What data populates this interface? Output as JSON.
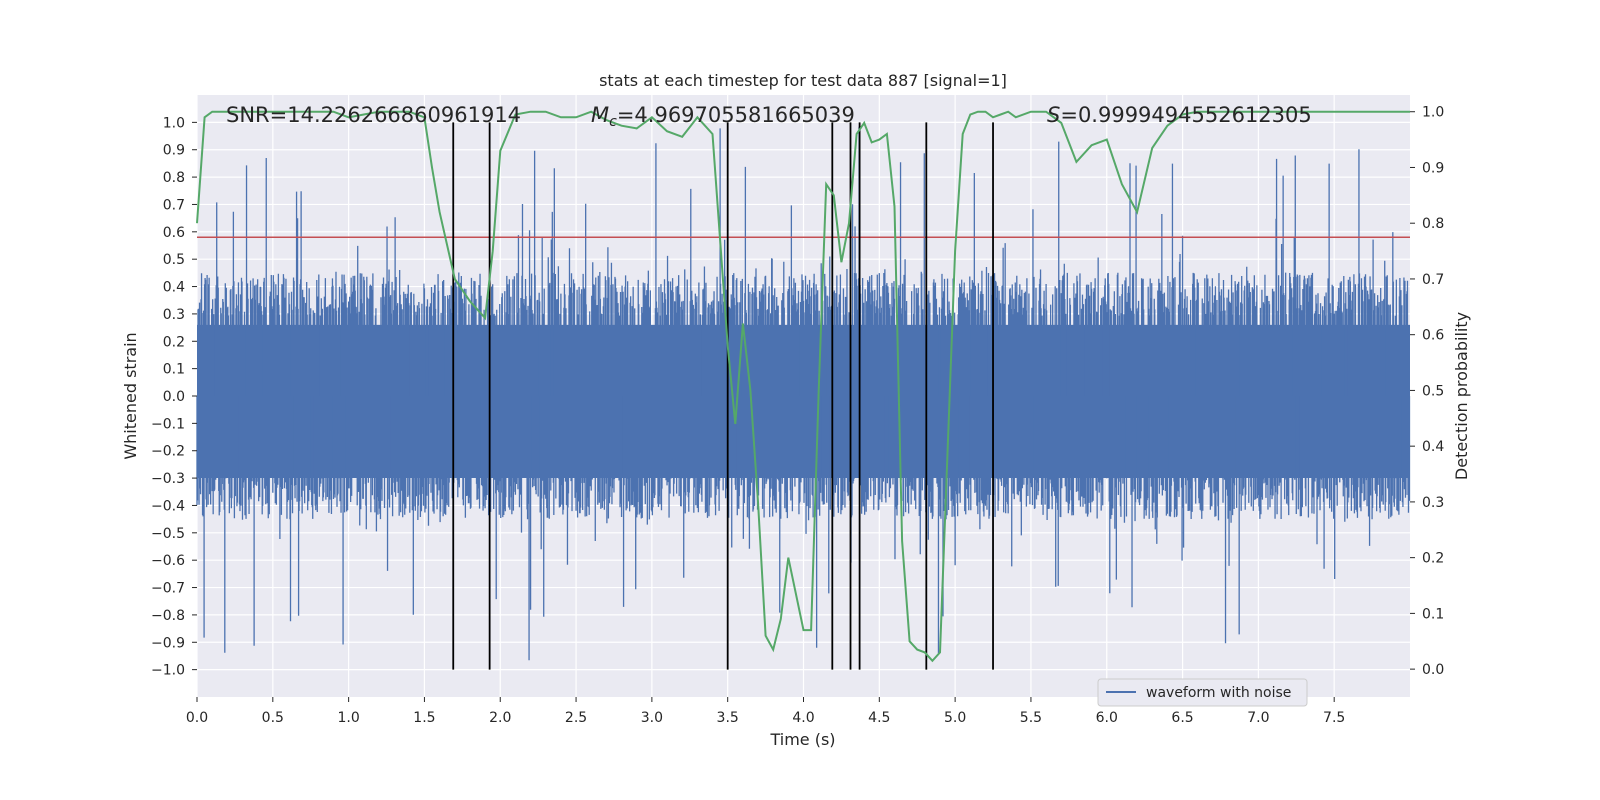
{
  "chart_data": {
    "type": "line",
    "title": "stats at each timestep for test data 887 [signal=1]",
    "xlabel": "Time (s)",
    "ylabel_left": "Whitened strain",
    "ylabel_right": "Detection probability",
    "xlim": [
      0.0,
      8.0
    ],
    "ylim_left": [
      -1.1,
      1.1
    ],
    "ylim_right": [
      -0.05,
      1.03
    ],
    "x_ticks": [
      "0.0",
      "0.5",
      "1.0",
      "1.5",
      "2.0",
      "2.5",
      "3.0",
      "3.5",
      "4.0",
      "4.5",
      "5.0",
      "5.5",
      "6.0",
      "6.5",
      "7.0",
      "7.5"
    ],
    "y_ticks_left": [
      "−1.0",
      "−0.9",
      "−0.8",
      "−0.7",
      "−0.6",
      "−0.5",
      "−0.4",
      "−0.3",
      "−0.2",
      "−0.1",
      "0.0",
      "0.1",
      "0.2",
      "0.3",
      "0.4",
      "0.5",
      "0.6",
      "0.7",
      "0.8",
      "0.9",
      "1.0"
    ],
    "y_ticks_right": [
      "0.0",
      "0.1",
      "0.2",
      "0.3",
      "0.4",
      "0.5",
      "0.6",
      "0.7",
      "0.8",
      "0.9",
      "1.0"
    ],
    "grid": true,
    "legend_placement": "lower-right",
    "annotations": {
      "snr": "SNR=14.226266860961914",
      "mc_symbol": "M",
      "mc_sub": "c",
      "mc_value": "=4.969705581665039",
      "s_symbol": "S",
      "s_value": "=0.9999494552612305"
    },
    "series": [
      {
        "name": "waveform with noise",
        "axis": "left",
        "color": "#4c72b0",
        "kind": "noise",
        "envelope_typical": 0.45,
        "envelope_max": 1.0
      },
      {
        "axis": "right",
        "color": "#55a868",
        "x": [
          0.0,
          0.05,
          0.1,
          0.2,
          0.3,
          0.4,
          0.5,
          0.6,
          0.7,
          0.8,
          0.9,
          1.0,
          1.1,
          1.2,
          1.3,
          1.4,
          1.5,
          1.55,
          1.6,
          1.7,
          1.8,
          1.9,
          1.95,
          2.0,
          2.1,
          2.2,
          2.3,
          2.4,
          2.5,
          2.6,
          2.7,
          2.8,
          2.9,
          3.0,
          3.1,
          3.2,
          3.3,
          3.4,
          3.5,
          3.55,
          3.6,
          3.65,
          3.7,
          3.75,
          3.8,
          3.85,
          3.9,
          4.0,
          4.05,
          4.1,
          4.15,
          4.2,
          4.25,
          4.3,
          4.35,
          4.4,
          4.45,
          4.5,
          4.55,
          4.6,
          4.65,
          4.7,
          4.75,
          4.8,
          4.85,
          4.9,
          5.0,
          5.05,
          5.1,
          5.15,
          5.2,
          5.25,
          5.3,
          5.35,
          5.4,
          5.5,
          5.6,
          5.7,
          5.8,
          5.9,
          6.0,
          6.1,
          6.2,
          6.3,
          6.4,
          6.5,
          6.6,
          6.7,
          6.8,
          6.9,
          7.0,
          7.5,
          8.0
        ],
        "y": [
          0.8,
          0.99,
          1.0,
          1.0,
          1.0,
          1.0,
          1.0,
          1.0,
          1.0,
          1.0,
          1.0,
          0.99,
          0.995,
          1.0,
          1.0,
          1.0,
          0.99,
          0.9,
          0.82,
          0.7,
          0.66,
          0.63,
          0.75,
          0.93,
          0.995,
          1.0,
          1.0,
          0.99,
          0.99,
          1.0,
          0.985,
          0.975,
          0.97,
          0.99,
          0.965,
          0.955,
          0.99,
          0.96,
          0.58,
          0.44,
          0.62,
          0.5,
          0.3,
          0.06,
          0.035,
          0.09,
          0.2,
          0.07,
          0.07,
          0.5,
          0.87,
          0.85,
          0.73,
          0.8,
          0.96,
          0.98,
          0.945,
          0.95,
          0.96,
          0.83,
          0.23,
          0.05,
          0.035,
          0.03,
          0.015,
          0.03,
          0.75,
          0.96,
          0.995,
          1.0,
          1.0,
          0.99,
          0.995,
          1.0,
          0.99,
          1.0,
          1.0,
          0.98,
          0.91,
          0.94,
          0.95,
          0.87,
          0.82,
          0.935,
          0.975,
          0.995,
          1.0,
          1.0,
          1.0,
          1.0,
          1.0,
          1.0,
          1.0
        ]
      }
    ],
    "threshold_line": {
      "axis": "left",
      "value": 0.58,
      "color": "#c44e52"
    },
    "vertical_lines": {
      "color": "#000000",
      "x": [
        1.69,
        1.93,
        3.5,
        4.19,
        4.31,
        4.37,
        4.81,
        5.25
      ]
    }
  }
}
